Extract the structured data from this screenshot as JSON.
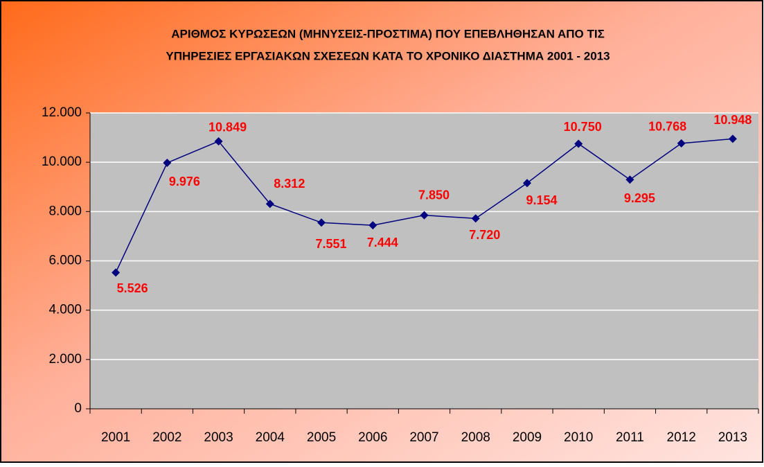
{
  "chart_data": {
    "type": "line",
    "title": [
      "ΑΡΙΘΜΟΣ ΚΥΡΩΣΕΩΝ (ΜΗΝΥΣΕΙΣ-ΠΡΟΣΤΙΜΑ) ΠΟΥ ΕΠΕΒΛΗΘΗΣΑΝ ΑΠΟ ΤΙΣ",
      "ΥΠΗΡΕΣΙΕΣ ΕΡΓΑΣΙΑΚΩΝ ΣΧΕΣΕΩΝ ΚΑΤΑ ΤΟ ΧΡΟΝΙΚΟ ΔΙΑΣΤΗΜΑ 2001 - 2013"
    ],
    "categories": [
      "2001",
      "2002",
      "2003",
      "2004",
      "2005",
      "2006",
      "2007",
      "2008",
      "2009",
      "2010",
      "2011",
      "2012",
      "2013"
    ],
    "values": [
      5526,
      9976,
      10849,
      8312,
      7551,
      7444,
      7850,
      7720,
      9154,
      10750,
      9295,
      10768,
      10948
    ],
    "value_labels": [
      "5.526",
      "9.976",
      "10.849",
      "8.312",
      "7.551",
      "7.444",
      "7.850",
      "7.720",
      "9.154",
      "10.750",
      "9.295",
      "10.768",
      "10.948"
    ],
    "color": "#000080",
    "ylim": [
      0,
      12000
    ],
    "yticks": [
      0,
      {
        "value": 2000,
        "label": "2.000"
      },
      {
        "value": 4000,
        "label": "4.000"
      },
      {
        "value": 6000,
        "label": "6.000"
      },
      {
        "value": 8000,
        "label": "8.000"
      },
      {
        "value": 10000,
        "label": "10.000"
      },
      {
        "value": 12000,
        "label": "12.000"
      }
    ],
    "grid": true
  }
}
